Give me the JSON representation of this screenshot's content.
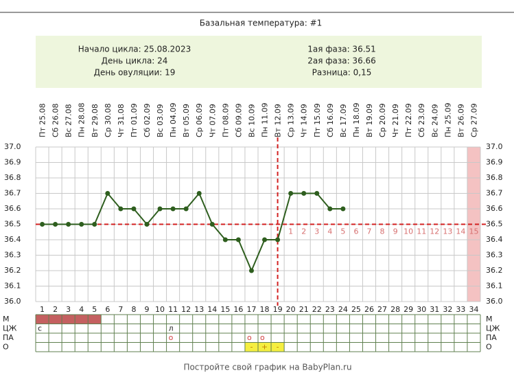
{
  "chart_data": {
    "type": "line",
    "title": "Базальная температура: #1",
    "info_left": [
      "Начало цикла: 25.08.2023",
      "День цикла: 24",
      "День овуляции: 19"
    ],
    "info_right": [
      "1ая фаза: 36.51",
      "2ая фаза: 36.66",
      "Разница: 0,15"
    ],
    "dates": [
      "Пт 25.08",
      "Сб 26.08",
      "Вс 27.08",
      "Пн 28.08",
      "Вт 29.08",
      "Ср 30.08",
      "Чт 31.08",
      "Пт 01.09",
      "Сб 02.09",
      "Вс 03.09",
      "Пн 04.09",
      "Вт 05.09",
      "Ср 06.09",
      "Чт 07.09",
      "Пт 08.09",
      "Сб 09.09",
      "Вс 10.09",
      "Пн 11.09",
      "Вт 12.09",
      "Ср 13.09",
      "Чт 14.09",
      "Пт 15.09",
      "Сб 16.09",
      "Вс 17.09",
      "Пн 18.09",
      "Вт 19.09",
      "Ср 20.09",
      "Чт 21.09",
      "Пт 22.09",
      "Сб 23.09",
      "Вс 24.09",
      "Пн 25.09",
      "Вт 26.09",
      "Ср 27.09"
    ],
    "categories": [
      1,
      2,
      3,
      4,
      5,
      6,
      7,
      8,
      9,
      10,
      11,
      12,
      13,
      14,
      15,
      16,
      17,
      18,
      19,
      20,
      21,
      22,
      23,
      24,
      25,
      26,
      27,
      28,
      29,
      30,
      31,
      32,
      33,
      34
    ],
    "values": [
      36.5,
      36.5,
      36.5,
      36.5,
      36.5,
      36.7,
      36.6,
      36.6,
      36.5,
      36.6,
      36.6,
      36.6,
      36.7,
      36.5,
      36.4,
      36.4,
      36.2,
      36.4,
      36.4,
      36.7,
      36.7,
      36.7,
      36.6,
      36.6,
      null,
      null,
      null,
      null,
      null,
      null,
      null,
      null,
      null,
      null
    ],
    "color": "#2e5e1e",
    "ylim": [
      36.0,
      37.0
    ],
    "yticks": [
      {
        "value": 36.0,
        "label": "36.0"
      },
      36.1,
      36.2,
      36.3,
      36.4,
      36.5,
      36.6,
      36.7,
      36.8,
      36.9,
      {
        "value": 37.0,
        "label": "37.0"
      }
    ],
    "coverline": 36.5,
    "ovulation_day": 19,
    "highlight_day": 34,
    "post_ovulation_start": 20,
    "post_ovulation_days": [
      1,
      2,
      3,
      4,
      5,
      6,
      7,
      8,
      9,
      10,
      11,
      12,
      13,
      14,
      15
    ],
    "rows": [
      {
        "label": "М",
        "filled_days": [
          1,
          2,
          3,
          4,
          5
        ]
      },
      {
        "label": "ЦЖ",
        "cells": [
          {
            "day": 1,
            "text": "с"
          },
          {
            "day": 11,
            "text": "л"
          }
        ]
      },
      {
        "label": "ПА",
        "cells": [
          {
            "day": 11,
            "text": "о"
          },
          {
            "day": 17,
            "text": "о"
          },
          {
            "day": 18,
            "text": "о"
          }
        ]
      },
      {
        "label": "О",
        "cells": [
          {
            "day": 17,
            "text": "-"
          },
          {
            "day": 18,
            "text": "+"
          },
          {
            "day": 19,
            "text": "-"
          }
        ]
      }
    ],
    "footer": "Постройте свой график на BabyPlan.ru"
  }
}
